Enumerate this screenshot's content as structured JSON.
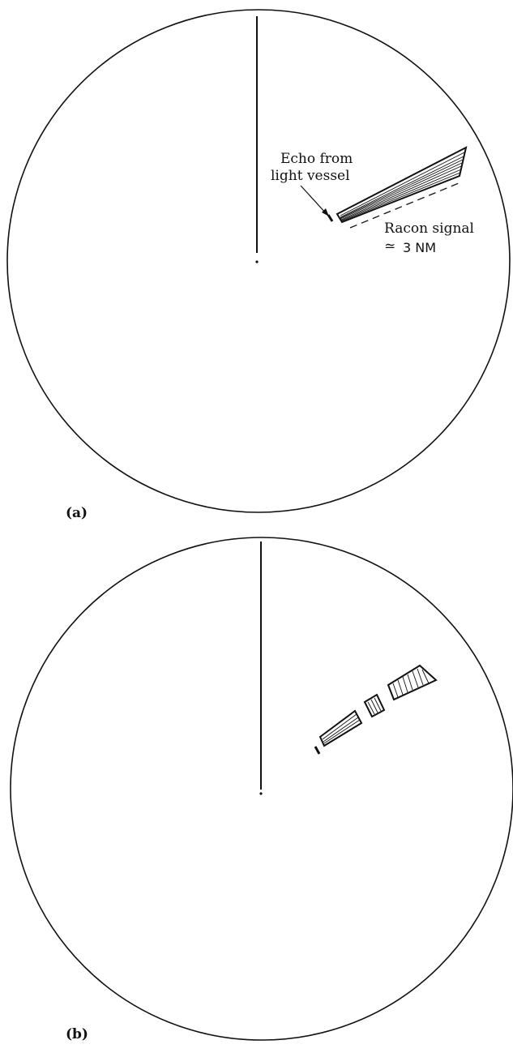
{
  "panels": [
    {
      "label": "(a)",
      "annotations": {
        "echo_line1": "Echo from",
        "echo_line2": "light vessel",
        "racon_line1": "Racon signal",
        "racon_symbol": "≃",
        "racon_distance": "3 NM"
      }
    },
    {
      "label": "(b)"
    }
  ],
  "colors": {
    "ink": "#111111",
    "background": "#ffffff"
  }
}
